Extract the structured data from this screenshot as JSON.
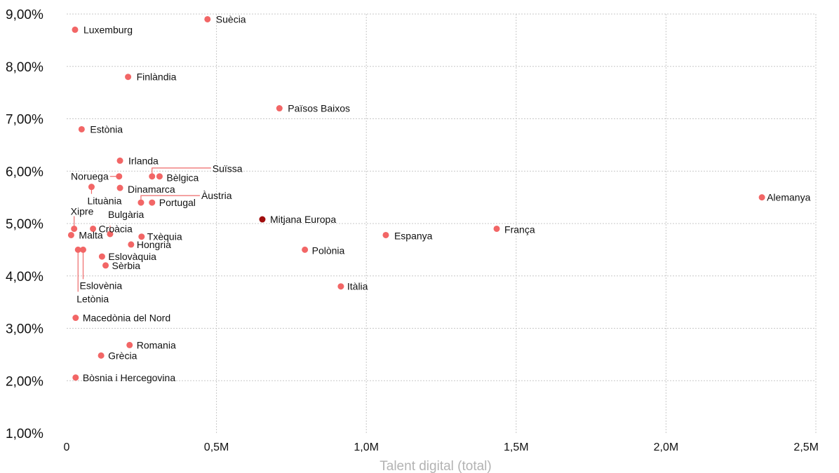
{
  "chart_data": {
    "type": "scatter",
    "title": "",
    "xlabel": "Talent digital (total)",
    "ylabel": "",
    "xlim": [
      0,
      2500000
    ],
    "ylim": [
      1.0,
      9.0
    ],
    "grid": true,
    "legend": "none",
    "x_ticks": [
      {
        "value": 0,
        "label": "0"
      },
      {
        "value": 500000,
        "label": "0,5M"
      },
      {
        "value": 1000000,
        "label": "1,0M"
      },
      {
        "value": 1500000,
        "label": "1,5M"
      },
      {
        "value": 2000000,
        "label": "2,0M"
      },
      {
        "value": 2500000,
        "label": "2,5M"
      }
    ],
    "y_ticks": [
      {
        "value": 1,
        "label": "1,00%"
      },
      {
        "value": 2,
        "label": "2,00%"
      },
      {
        "value": 3,
        "label": "3,00%"
      },
      {
        "value": 4,
        "label": "4,00%"
      },
      {
        "value": 5,
        "label": "5,00%"
      },
      {
        "value": 6,
        "label": "6,00%"
      },
      {
        "value": 7,
        "label": "7,00%"
      },
      {
        "value": 8,
        "label": "8,00%"
      },
      {
        "value": 9,
        "label": "9,00%"
      }
    ],
    "colors": {
      "point": "#f26666",
      "highlight": "#a00d0d",
      "leader": "#ee6a6a"
    },
    "points": [
      {
        "name": "Suècia",
        "x": 470000,
        "y": 8.9
      },
      {
        "name": "Luxemburg",
        "x": 28000,
        "y": 8.7
      },
      {
        "name": "Finlàndia",
        "x": 205000,
        "y": 7.8
      },
      {
        "name": "Països Baixos",
        "x": 710000,
        "y": 7.2
      },
      {
        "name": "Estònia",
        "x": 50000,
        "y": 6.8
      },
      {
        "name": "Irlanda",
        "x": 178000,
        "y": 6.2
      },
      {
        "name": "Suïssa",
        "x": 285000,
        "y": 5.9
      },
      {
        "name": "Bèlgica",
        "x": 310000,
        "y": 5.9
      },
      {
        "name": "Noruega",
        "x": 175000,
        "y": 5.9
      },
      {
        "name": "Lituània",
        "x": 83000,
        "y": 5.7
      },
      {
        "name": "Dinamarca",
        "x": 178000,
        "y": 5.68
      },
      {
        "name": "Àustria",
        "x": 248000,
        "y": 5.4
      },
      {
        "name": "Portugal",
        "x": 285000,
        "y": 5.4
      },
      {
        "name": "Alemanya",
        "x": 2320000,
        "y": 5.5
      },
      {
        "name": "Xipre",
        "x": 25000,
        "y": 4.9
      },
      {
        "name": "Croàcia",
        "x": 88000,
        "y": 4.9
      },
      {
        "name": "Bulgària",
        "x": 145000,
        "y": 4.8
      },
      {
        "name": "Malta",
        "x": 15000,
        "y": 4.78
      },
      {
        "name": "Txèquia",
        "x": 250000,
        "y": 4.75
      },
      {
        "name": "Mitjana Europa",
        "x": 653000,
        "y": 5.08,
        "highlight": true
      },
      {
        "name": "Espanya",
        "x": 1065000,
        "y": 4.78
      },
      {
        "name": "França",
        "x": 1435000,
        "y": 4.9
      },
      {
        "name": "Hongria",
        "x": 215000,
        "y": 4.6
      },
      {
        "name": "Polònia",
        "x": 795000,
        "y": 4.5
      },
      {
        "name": "Eslovènia",
        "x": 55000,
        "y": 4.5
      },
      {
        "name": "Letònia",
        "x": 38000,
        "y": 4.5
      },
      {
        "name": "Eslovàquia",
        "x": 118000,
        "y": 4.37
      },
      {
        "name": "Sèrbia",
        "x": 130000,
        "y": 4.2
      },
      {
        "name": "Itàlia",
        "x": 915000,
        "y": 3.8
      },
      {
        "name": "Macedònia del Nord",
        "x": 30000,
        "y": 3.2
      },
      {
        "name": "Romania",
        "x": 210000,
        "y": 2.68
      },
      {
        "name": "Grècia",
        "x": 115000,
        "y": 2.48
      },
      {
        "name": "Bòsnia i Hercegovina",
        "x": 30000,
        "y": 2.06
      }
    ]
  }
}
